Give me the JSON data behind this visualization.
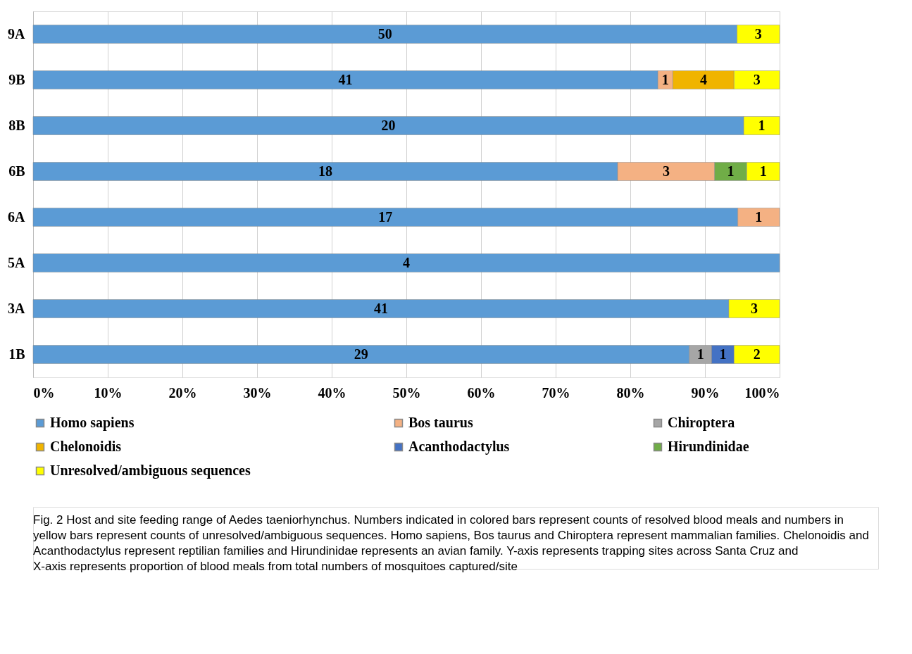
{
  "chart_data": {
    "type": "bar",
    "orientation": "horizontal",
    "stacked": true,
    "categories": [
      "9A",
      "9B",
      "8B",
      "6B",
      "6A",
      "5A",
      "3A",
      "1B"
    ],
    "series": [
      {
        "name": "Homo sapiens",
        "color": "#5b9bd5",
        "values": [
          94.3,
          83.7,
          95.2,
          78.3,
          94.4,
          100,
          93.2,
          87.9
        ]
      },
      {
        "name": "Bos taurus",
        "color": "#f4b183",
        "values": [
          null,
          2.0,
          null,
          13.0,
          5.6,
          null,
          null,
          null
        ]
      },
      {
        "name": "Chiroptera",
        "color": "#a6a6a6",
        "values": [
          null,
          null,
          null,
          null,
          null,
          null,
          null,
          3.0
        ]
      },
      {
        "name": "Chelonoidis",
        "color": "#f0b400",
        "values": [
          null,
          8.2,
          null,
          null,
          null,
          null,
          null,
          null
        ]
      },
      {
        "name": "Acanthodactylus",
        "color": "#4472c4",
        "values": [
          null,
          null,
          null,
          null,
          null,
          null,
          null,
          3.0
        ]
      },
      {
        "name": "Hirundinidae",
        "color": "#70ad47",
        "values": [
          null,
          null,
          null,
          4.3,
          null,
          null,
          null,
          null
        ]
      },
      {
        "name": "Unresolved/ambiguous sequences",
        "color": "#ffff00",
        "values": [
          5.7,
          6.1,
          4.8,
          4.4,
          null,
          null,
          6.8,
          6.1
        ]
      }
    ],
    "xlim": [
      0,
      100
    ],
    "xticks": [
      {
        "value": 0,
        "label": "0%"
      },
      {
        "value": 10,
        "label": "10%"
      },
      {
        "value": 20,
        "label": "20%"
      },
      {
        "value": 30,
        "label": "30%"
      },
      {
        "value": 40,
        "label": "40%"
      },
      {
        "value": 50,
        "label": "50%"
      },
      {
        "value": 60,
        "label": "60%"
      },
      {
        "value": 70,
        "label": "70%"
      },
      {
        "value": 80,
        "label": "80%"
      },
      {
        "value": 90,
        "label": "90%"
      },
      {
        "value": 100,
        "label": "100%"
      }
    ],
    "grid": "x",
    "legend": "bottom",
    "annotations": [
      "50",
      "3",
      "41",
      "1",
      "4",
      "3",
      "20",
      "1",
      "18",
      "3",
      "1",
      "1",
      "17",
      "1",
      "4",
      "41",
      "3",
      "29",
      "1",
      "1",
      "2",
      "Fig. 2 Host and site feeding range of Aedes taeniorhynchus. Numbers indicated in colored bars represent counts of resolved blood meals and numbers in yellow bars represent counts of unresolved/ambiguous sequences. Homo sapiens, Bos taurus and Chiroptera represent mammalian families. Chelonoidis and Acanthodactylus represent reptilian families and Hirundinidae represents an avian family. Y-axis represents trapping sites across Santa Cruz and X-axis represents proportion of blood meals from total numbers of mosquitoes captured/site"
    ]
  }
}
